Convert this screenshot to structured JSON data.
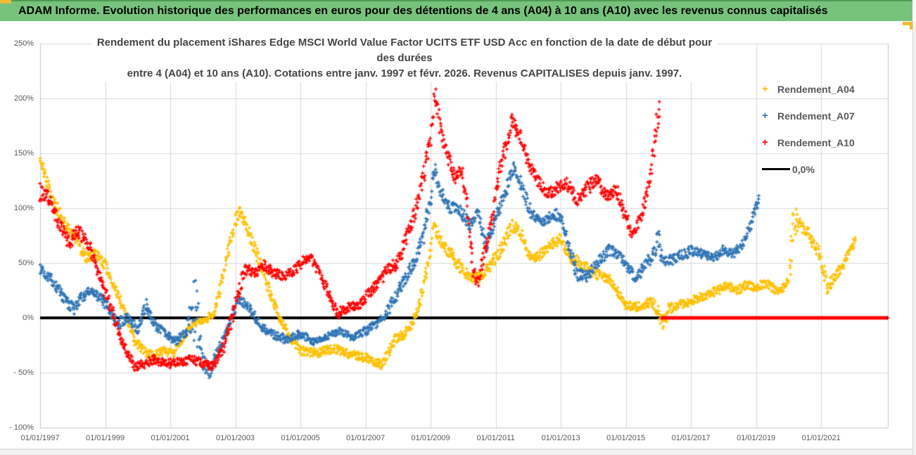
{
  "banner": {
    "title": "ADAM Informe. Evolution historique des performances en euros pour des détentions de 4 ans (A04) à 10 ans (A10) avec les revenus connus capitalisés"
  },
  "chart": {
    "title_line1": "Rendement du placement iShares Edge MSCI World Value Factor UCITS ETF USD Acc en fonction de la date de début pour des durées",
    "title_line2": "entre 4 (A04) et 10 ans (A10). Cotations entre janv. 1997 et févr. 2026. Revenus CAPITALISES depuis janv. 1997."
  },
  "colors": {
    "banner_green": "#77C37D",
    "banner_border_green": "#4E9B54",
    "gold_accent": "#EFBB2F",
    "grid": "#D9D9D9",
    "axis_text": "#595959",
    "series_a04": "#FFC000",
    "series_a07": "#2E74B5",
    "series_a10": "#FF0000",
    "zero_line": "#000000"
  },
  "chart_data": {
    "type": "scatter",
    "marker": "+",
    "grid": true,
    "legend_position": "right",
    "x_axis": {
      "min_year": 1997.0,
      "max_year": 2023.05,
      "tick_years": [
        1997,
        1999,
        2001,
        2003,
        2005,
        2007,
        2009,
        2011,
        2013,
        2015,
        2017,
        2019,
        2021
      ],
      "tick_labels": [
        "01/01/1997",
        "01/01/1999",
        "01/01/2001",
        "01/01/2003",
        "01/01/2005",
        "01/01/2007",
        "01/01/2009",
        "01/01/2011",
        "01/01/2013",
        "01/01/2015",
        "01/01/2017",
        "01/01/2019",
        "01/01/2021"
      ]
    },
    "y_axis": {
      "min": -100,
      "max": 250,
      "step": 50,
      "tick_values": [
        250,
        200,
        150,
        100,
        50,
        0,
        -50,
        -100
      ],
      "tick_labels": [
        "250%",
        "200%",
        "150%",
        "100%",
        "50%",
        "0%",
        "- 50%",
        "- 100%"
      ]
    },
    "zero_line": {
      "label": "0,0%",
      "color": "#000000",
      "value": 0
    },
    "series": [
      {
        "name": "Rendement_A04",
        "color": "#FFC000",
        "anchors": [
          [
            1997.0,
            142,
            6
          ],
          [
            1997.2,
            125,
            6
          ],
          [
            1997.5,
            100,
            7
          ],
          [
            1997.8,
            82,
            6
          ],
          [
            1998.1,
            72,
            6
          ],
          [
            1998.45,
            55,
            6
          ],
          [
            1998.7,
            58,
            5
          ],
          [
            1999.0,
            48,
            5
          ],
          [
            1999.3,
            28,
            5
          ],
          [
            1999.6,
            5,
            5
          ],
          [
            1999.9,
            -20,
            5
          ],
          [
            2000.2,
            -30,
            4
          ],
          [
            2000.5,
            -35,
            4
          ],
          [
            2000.8,
            -30,
            4
          ],
          [
            2001.1,
            -32,
            4
          ],
          [
            2001.4,
            -18,
            4
          ],
          [
            2001.7,
            -5,
            3
          ],
          [
            2002.1,
            -2,
            3
          ],
          [
            2002.4,
            8,
            5
          ],
          [
            2002.7,
            50,
            7
          ],
          [
            2003.0,
            88,
            6
          ],
          [
            2003.15,
            97,
            5
          ],
          [
            2003.4,
            80,
            6
          ],
          [
            2003.7,
            55,
            6
          ],
          [
            2004.0,
            28,
            6
          ],
          [
            2004.3,
            5,
            5
          ],
          [
            2004.6,
            -15,
            4
          ],
          [
            2005.0,
            -30,
            4
          ],
          [
            2005.5,
            -32,
            4
          ],
          [
            2006.0,
            -28,
            4
          ],
          [
            2006.5,
            -33,
            4
          ],
          [
            2007.0,
            -36,
            4
          ],
          [
            2007.5,
            -43,
            4
          ],
          [
            2007.9,
            -20,
            5
          ],
          [
            2008.3,
            -12,
            5
          ],
          [
            2008.6,
            5,
            6
          ],
          [
            2008.9,
            45,
            7
          ],
          [
            2009.1,
            85,
            6
          ],
          [
            2009.35,
            68,
            6
          ],
          [
            2009.7,
            55,
            5
          ],
          [
            2010.0,
            42,
            5
          ],
          [
            2010.4,
            35,
            5
          ],
          [
            2010.8,
            45,
            5
          ],
          [
            2011.2,
            65,
            6
          ],
          [
            2011.5,
            85,
            7
          ],
          [
            2011.8,
            75,
            6
          ],
          [
            2012.1,
            52,
            5
          ],
          [
            2012.45,
            60,
            5
          ],
          [
            2012.8,
            68,
            5
          ],
          [
            2013.0,
            72,
            5
          ],
          [
            2013.3,
            55,
            5
          ],
          [
            2013.7,
            48,
            5
          ],
          [
            2014.1,
            40,
            5
          ],
          [
            2014.5,
            35,
            4
          ],
          [
            2015.0,
            12,
            4
          ],
          [
            2015.4,
            10,
            4
          ],
          [
            2015.8,
            15,
            4
          ],
          [
            2016.0,
            5,
            6
          ],
          [
            2016.15,
            -8,
            9
          ],
          [
            2016.3,
            8,
            5
          ],
          [
            2016.6,
            12,
            4
          ],
          [
            2017.0,
            15,
            4
          ],
          [
            2017.4,
            20,
            4
          ],
          [
            2017.8,
            25,
            4
          ],
          [
            2018.1,
            30,
            4
          ],
          [
            2018.4,
            25,
            4
          ],
          [
            2018.7,
            30,
            4
          ],
          [
            2019.0,
            28,
            4
          ],
          [
            2019.3,
            32,
            4
          ],
          [
            2019.6,
            25,
            4
          ],
          [
            2019.9,
            28,
            4
          ],
          [
            2020.05,
            45,
            8
          ],
          [
            2020.13,
            85,
            22
          ],
          [
            2020.3,
            88,
            7
          ],
          [
            2020.5,
            82,
            6
          ],
          [
            2020.7,
            72,
            6
          ],
          [
            2020.9,
            62,
            6
          ],
          [
            2021.1,
            40,
            6
          ],
          [
            2021.2,
            26,
            5
          ],
          [
            2021.4,
            38,
            5
          ],
          [
            2021.6,
            45,
            5
          ],
          [
            2021.8,
            55,
            5
          ],
          [
            2022.0,
            68,
            4
          ],
          [
            2022.08,
            72,
            3
          ]
        ]
      },
      {
        "name": "Rendement_A07",
        "color": "#2E74B5",
        "anchors": [
          [
            1997.0,
            45,
            5
          ],
          [
            1997.4,
            33,
            5
          ],
          [
            1997.8,
            15,
            5
          ],
          [
            1998.05,
            8,
            5
          ],
          [
            1998.3,
            20,
            5
          ],
          [
            1998.6,
            25,
            4
          ],
          [
            1999.0,
            14,
            5
          ],
          [
            1999.4,
            -6,
            5
          ],
          [
            1999.7,
            2,
            5
          ],
          [
            2000.0,
            -12,
            5
          ],
          [
            2000.25,
            12,
            6
          ],
          [
            2000.5,
            -5,
            5
          ],
          [
            2000.9,
            -16,
            4
          ],
          [
            2001.2,
            -22,
            4
          ],
          [
            2001.5,
            -12,
            4
          ],
          [
            2001.75,
            15,
            38
          ],
          [
            2002.0,
            -38,
            8
          ],
          [
            2002.2,
            -50,
            6
          ],
          [
            2002.5,
            -28,
            5
          ],
          [
            2002.8,
            -8,
            5
          ],
          [
            2003.1,
            18,
            5
          ],
          [
            2003.45,
            8,
            4
          ],
          [
            2003.8,
            -8,
            4
          ],
          [
            2004.2,
            -16,
            4
          ],
          [
            2004.6,
            -20,
            4
          ],
          [
            2005.0,
            -14,
            4
          ],
          [
            2005.4,
            -22,
            3
          ],
          [
            2005.8,
            -17,
            3
          ],
          [
            2006.2,
            -12,
            3
          ],
          [
            2006.6,
            -18,
            3
          ],
          [
            2007.0,
            -12,
            4
          ],
          [
            2007.4,
            -4,
            4
          ],
          [
            2007.8,
            12,
            6
          ],
          [
            2008.1,
            30,
            6
          ],
          [
            2008.45,
            48,
            6
          ],
          [
            2008.75,
            70,
            7
          ],
          [
            2009.0,
            110,
            8
          ],
          [
            2009.12,
            138,
            6
          ],
          [
            2009.3,
            115,
            6
          ],
          [
            2009.6,
            100,
            6
          ],
          [
            2009.9,
            98,
            5
          ],
          [
            2010.2,
            85,
            6
          ],
          [
            2010.45,
            95,
            5
          ],
          [
            2010.7,
            65,
            6
          ],
          [
            2011.0,
            90,
            6
          ],
          [
            2011.3,
            115,
            6
          ],
          [
            2011.55,
            138,
            6
          ],
          [
            2011.8,
            120,
            6
          ],
          [
            2012.1,
            95,
            6
          ],
          [
            2012.4,
            88,
            5
          ],
          [
            2012.7,
            92,
            5
          ],
          [
            2012.95,
            95,
            6
          ],
          [
            2013.2,
            70,
            6
          ],
          [
            2013.5,
            40,
            6
          ],
          [
            2013.8,
            38,
            5
          ],
          [
            2014.1,
            50,
            5
          ],
          [
            2014.5,
            62,
            5
          ],
          [
            2014.8,
            58,
            5
          ],
          [
            2015.1,
            45,
            5
          ],
          [
            2015.3,
            35,
            5
          ],
          [
            2015.6,
            48,
            5
          ],
          [
            2015.9,
            60,
            6
          ],
          [
            2016.0,
            70,
            12
          ],
          [
            2016.2,
            50,
            5
          ],
          [
            2016.5,
            55,
            5
          ],
          [
            2016.8,
            58,
            5
          ],
          [
            2017.1,
            62,
            5
          ],
          [
            2017.4,
            58,
            4
          ],
          [
            2017.7,
            55,
            4
          ],
          [
            2018.0,
            62,
            4
          ],
          [
            2018.3,
            58,
            4
          ],
          [
            2018.6,
            68,
            4
          ],
          [
            2018.8,
            82,
            5
          ],
          [
            2019.0,
            102,
            5
          ],
          [
            2019.1,
            112,
            4
          ]
        ]
      },
      {
        "name": "Rendement_A10",
        "color": "#FF0000",
        "zero_tail_from": 2016.07,
        "zero_tail_to": 2023.0,
        "anchors": [
          [
            1997.0,
            115,
            9
          ],
          [
            1997.3,
            108,
            7
          ],
          [
            1997.6,
            85,
            6
          ],
          [
            1997.9,
            68,
            6
          ],
          [
            1998.15,
            80,
            6
          ],
          [
            1998.5,
            68,
            6
          ],
          [
            1998.8,
            40,
            6
          ],
          [
            1999.05,
            20,
            6
          ],
          [
            1999.3,
            -2,
            6
          ],
          [
            1999.6,
            -28,
            5
          ],
          [
            1999.9,
            -45,
            4
          ],
          [
            2000.2,
            -42,
            4
          ],
          [
            2000.5,
            -38,
            4
          ],
          [
            2000.9,
            -42,
            4
          ],
          [
            2001.3,
            -40,
            4
          ],
          [
            2001.7,
            -38,
            4
          ],
          [
            2002.0,
            -42,
            4
          ],
          [
            2002.35,
            -44,
            4
          ],
          [
            2002.7,
            -22,
            6
          ],
          [
            2003.0,
            12,
            7
          ],
          [
            2003.3,
            45,
            6
          ],
          [
            2003.6,
            40,
            5
          ],
          [
            2003.9,
            48,
            5
          ],
          [
            2004.2,
            40,
            5
          ],
          [
            2004.5,
            37,
            5
          ],
          [
            2004.8,
            44,
            5
          ],
          [
            2005.1,
            52,
            5
          ],
          [
            2005.3,
            57,
            5
          ],
          [
            2005.6,
            40,
            5
          ],
          [
            2005.9,
            20,
            5
          ],
          [
            2006.15,
            4,
            5
          ],
          [
            2006.5,
            10,
            4
          ],
          [
            2006.8,
            12,
            4
          ],
          [
            2007.1,
            22,
            5
          ],
          [
            2007.4,
            32,
            5
          ],
          [
            2007.7,
            45,
            5
          ],
          [
            2007.95,
            48,
            6
          ],
          [
            2008.2,
            68,
            7
          ],
          [
            2008.5,
            95,
            8
          ],
          [
            2008.8,
            130,
            8
          ],
          [
            2009.0,
            165,
            8
          ],
          [
            2009.13,
            205,
            12
          ],
          [
            2009.3,
            172,
            7
          ],
          [
            2009.5,
            150,
            6
          ],
          [
            2009.75,
            128,
            6
          ],
          [
            2009.95,
            135,
            6
          ],
          [
            2010.1,
            108,
            7
          ],
          [
            2010.3,
            45,
            8
          ],
          [
            2010.45,
            32,
            6
          ],
          [
            2010.65,
            60,
            7
          ],
          [
            2010.85,
            85,
            7
          ],
          [
            2011.1,
            130,
            8
          ],
          [
            2011.3,
            155,
            7
          ],
          [
            2011.5,
            180,
            6
          ],
          [
            2011.75,
            165,
            6
          ],
          [
            2012.0,
            142,
            6
          ],
          [
            2012.3,
            125,
            6
          ],
          [
            2012.6,
            113,
            6
          ],
          [
            2012.9,
            120,
            6
          ],
          [
            2013.2,
            122,
            6
          ],
          [
            2013.5,
            108,
            6
          ],
          [
            2013.8,
            118,
            6
          ],
          [
            2014.1,
            126,
            6
          ],
          [
            2014.4,
            110,
            6
          ],
          [
            2014.7,
            118,
            6
          ],
          [
            2015.0,
            92,
            6
          ],
          [
            2015.2,
            76,
            5
          ],
          [
            2015.45,
            92,
            6
          ],
          [
            2015.7,
            118,
            7
          ],
          [
            2015.85,
            150,
            10
          ],
          [
            2015.95,
            178,
            12
          ],
          [
            2016.05,
            195,
            8
          ]
        ]
      }
    ]
  }
}
